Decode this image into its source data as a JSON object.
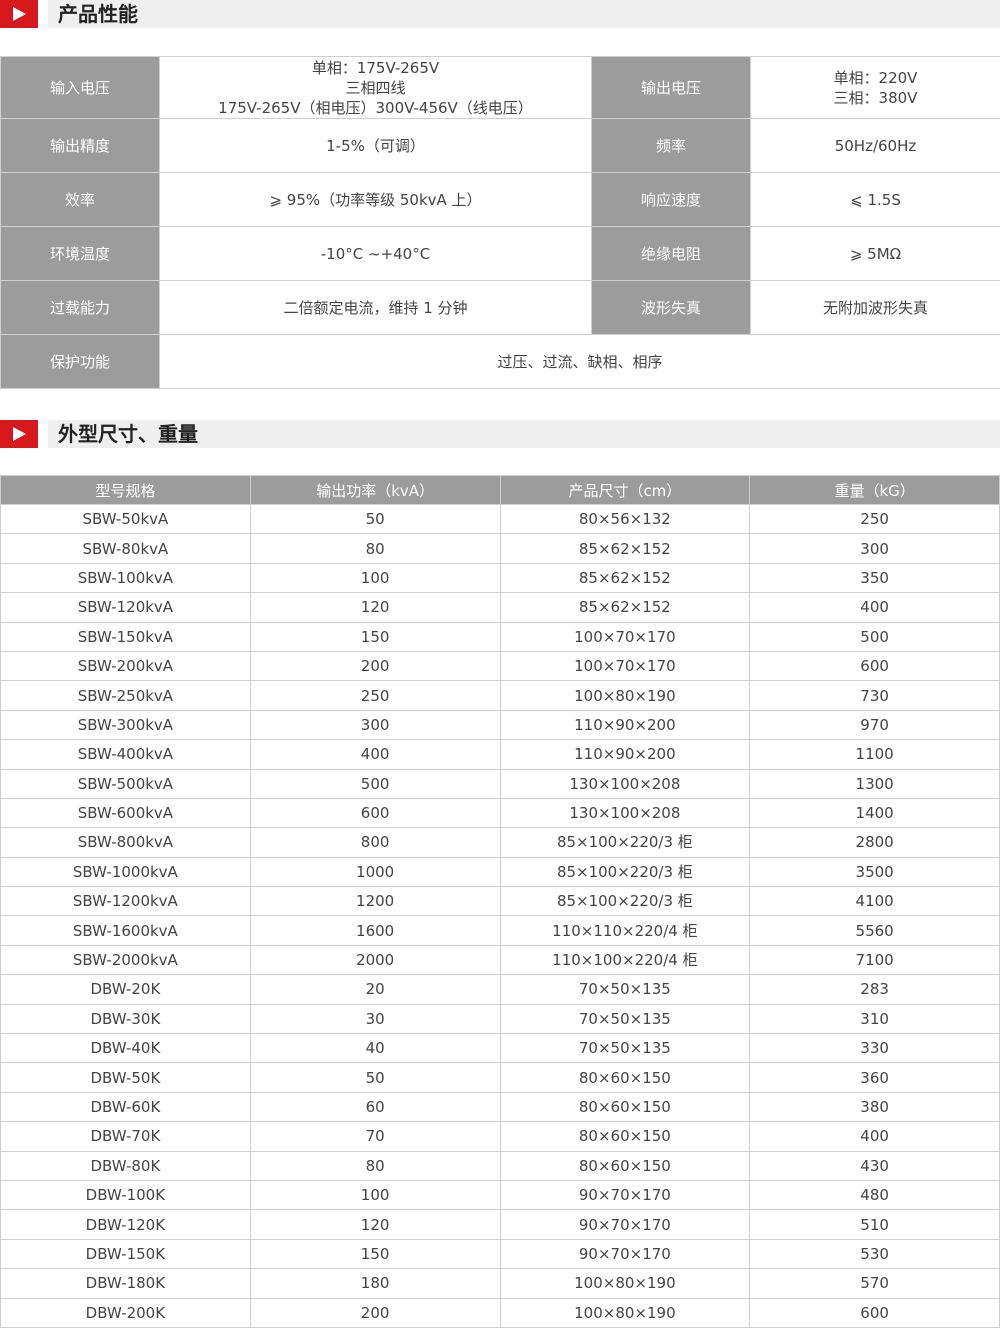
{
  "section1": {
    "title": "产品性能"
  },
  "performance": [
    [
      {
        "k": "输入电压",
        "v": [
          "单相：175V-265V",
          "三相四线",
          "175V-265V（相电压）300V-456V（线电压）"
        ]
      },
      {
        "k": "输出电压",
        "v": [
          "单相：220V",
          "三相：380V"
        ]
      }
    ],
    [
      {
        "k": "输出精度",
        "v": [
          "1-5%（可调）"
        ]
      },
      {
        "k": "频率",
        "v": [
          "50Hz/60Hz"
        ]
      }
    ],
    [
      {
        "k": "效率",
        "v": [
          "⩾ 95%（功率等级 50kvA 上）"
        ]
      },
      {
        "k": "响应速度",
        "v": [
          "⩽ 1.5S"
        ]
      }
    ],
    [
      {
        "k": "环境温度",
        "v": [
          "-10°C ~+40°C"
        ]
      },
      {
        "k": "绝缘电阻",
        "v": [
          "⩾ 5MΩ"
        ]
      }
    ],
    [
      {
        "k": "过载能力",
        "v": [
          "二倍额定电流，维持 1 分钟"
        ]
      },
      {
        "k": "波形失真",
        "v": [
          "无附加波形失真"
        ]
      }
    ],
    [
      {
        "k": "保护功能",
        "v": [
          "过压、过流、缺相、相序"
        ]
      }
    ]
  ],
  "section2": {
    "title": "外型尺寸、重量"
  },
  "dimensions": {
    "headers": [
      "型号规格",
      "输出功率（kvA）",
      "产品尺寸（cm）",
      "重量（kG）"
    ],
    "rows": [
      [
        "SBW-50kvA",
        "50",
        "80×56×132",
        "250"
      ],
      [
        "SBW-80kvA",
        "80",
        "85×62×152",
        "300"
      ],
      [
        "SBW-100kvA",
        "100",
        "85×62×152",
        "350"
      ],
      [
        "SBW-120kvA",
        "120",
        "85×62×152",
        "400"
      ],
      [
        "SBW-150kvA",
        "150",
        "100×70×170",
        "500"
      ],
      [
        "SBW-200kvA",
        "200",
        "100×70×170",
        "600"
      ],
      [
        "SBW-250kvA",
        "250",
        "100×80×190",
        "730"
      ],
      [
        "SBW-300kvA",
        "300",
        "110×90×200",
        "970"
      ],
      [
        "SBW-400kvA",
        "400",
        "110×90×200",
        "1100"
      ],
      [
        "SBW-500kvA",
        "500",
        "130×100×208",
        "1300"
      ],
      [
        "SBW-600kvA",
        "600",
        "130×100×208",
        "1400"
      ],
      [
        "SBW-800kvA",
        "800",
        "85×100×220/3 柜",
        "2800"
      ],
      [
        "SBW-1000kvA",
        "1000",
        "85×100×220/3 柜",
        "3500"
      ],
      [
        "SBW-1200kvA",
        "1200",
        "85×100×220/3 柜",
        "4100"
      ],
      [
        "SBW-1600kvA",
        "1600",
        "110×110×220/4 柜",
        "5560"
      ],
      [
        "SBW-2000kvA",
        "2000",
        "110×100×220/4 柜",
        "7100"
      ],
      [
        "DBW-20K",
        "20",
        "70×50×135",
        "283"
      ],
      [
        "DBW-30K",
        "30",
        "70×50×135",
        "310"
      ],
      [
        "DBW-40K",
        "40",
        "70×50×135",
        "330"
      ],
      [
        "DBW-50K",
        "50",
        "80×60×150",
        "360"
      ],
      [
        "DBW-60K",
        "60",
        "80×60×150",
        "380"
      ],
      [
        "DBW-70K",
        "70",
        "80×60×150",
        "400"
      ],
      [
        "DBW-80K",
        "80",
        "80×60×150",
        "430"
      ],
      [
        "DBW-100K",
        "100",
        "90×70×170",
        "480"
      ],
      [
        "DBW-120K",
        "120",
        "90×70×170",
        "510"
      ],
      [
        "DBW-150K",
        "150",
        "90×70×170",
        "530"
      ],
      [
        "DBW-180K",
        "180",
        "100×80×190",
        "570"
      ],
      [
        "DBW-200K",
        "200",
        "100×80×190",
        "600"
      ]
    ]
  },
  "colors": {
    "accent": "#d7191d",
    "header_bg": "#9c9c9c",
    "section_bg": "#efefef"
  }
}
